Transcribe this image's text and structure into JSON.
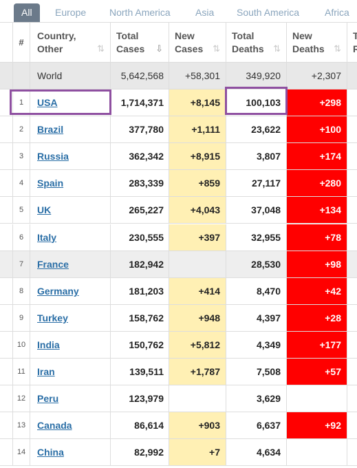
{
  "tabs": [
    "All",
    "Europe",
    "North America",
    "Asia",
    "South America",
    "Africa"
  ],
  "header": {
    "rank": "#",
    "country": "Country, Other",
    "total_cases": "Total Cases",
    "new_cases": "New Cases",
    "total_deaths": "Total Deaths",
    "new_deaths": "New Deaths",
    "extra": "T R"
  },
  "world": {
    "label": "World",
    "total_cases": "5,642,568",
    "new_cases": "+58,301",
    "total_deaths": "349,920",
    "new_deaths": "+2,307"
  },
  "rows": [
    {
      "rank": "1",
      "country": "USA",
      "total_cases": "1,714,371",
      "new_cases": "+8,145",
      "total_deaths": "100,103",
      "new_deaths": "+298"
    },
    {
      "rank": "2",
      "country": "Brazil",
      "total_cases": "377,780",
      "new_cases": "+1,111",
      "total_deaths": "23,622",
      "new_deaths": "+100"
    },
    {
      "rank": "3",
      "country": "Russia",
      "total_cases": "362,342",
      "new_cases": "+8,915",
      "total_deaths": "3,807",
      "new_deaths": "+174"
    },
    {
      "rank": "4",
      "country": "Spain",
      "total_cases": "283,339",
      "new_cases": "+859",
      "total_deaths": "27,117",
      "new_deaths": "+280"
    },
    {
      "rank": "5",
      "country": "UK",
      "total_cases": "265,227",
      "new_cases": "+4,043",
      "total_deaths": "37,048",
      "new_deaths": "+134"
    },
    {
      "rank": "6",
      "country": "Italy",
      "total_cases": "230,555",
      "new_cases": "+397",
      "total_deaths": "32,955",
      "new_deaths": "+78"
    },
    {
      "rank": "7",
      "country": "France",
      "total_cases": "182,942",
      "new_cases": "",
      "total_deaths": "28,530",
      "new_deaths": "+98"
    },
    {
      "rank": "8",
      "country": "Germany",
      "total_cases": "181,203",
      "new_cases": "+414",
      "total_deaths": "8,470",
      "new_deaths": "+42"
    },
    {
      "rank": "9",
      "country": "Turkey",
      "total_cases": "158,762",
      "new_cases": "+948",
      "total_deaths": "4,397",
      "new_deaths": "+28"
    },
    {
      "rank": "10",
      "country": "India",
      "total_cases": "150,762",
      "new_cases": "+5,812",
      "total_deaths": "4,349",
      "new_deaths": "+177"
    },
    {
      "rank": "11",
      "country": "Iran",
      "total_cases": "139,511",
      "new_cases": "+1,787",
      "total_deaths": "7,508",
      "new_deaths": "+57"
    },
    {
      "rank": "12",
      "country": "Peru",
      "total_cases": "123,979",
      "new_cases": "",
      "total_deaths": "3,629",
      "new_deaths": ""
    },
    {
      "rank": "13",
      "country": "Canada",
      "total_cases": "86,614",
      "new_cases": "+903",
      "total_deaths": "6,637",
      "new_deaths": "+92"
    },
    {
      "rank": "14",
      "country": "China",
      "total_cases": "82,992",
      "new_cases": "+7",
      "total_deaths": "4,634",
      "new_deaths": ""
    }
  ],
  "colors": {
    "new_cases_bg": "#fff0b4",
    "new_deaths_bg": "#ff0000",
    "highlight_border": "#8e4fa0",
    "link": "#2a6ea6"
  },
  "icons": {
    "sort": "sort-icon",
    "sort_active": "sort-desc-icon"
  }
}
